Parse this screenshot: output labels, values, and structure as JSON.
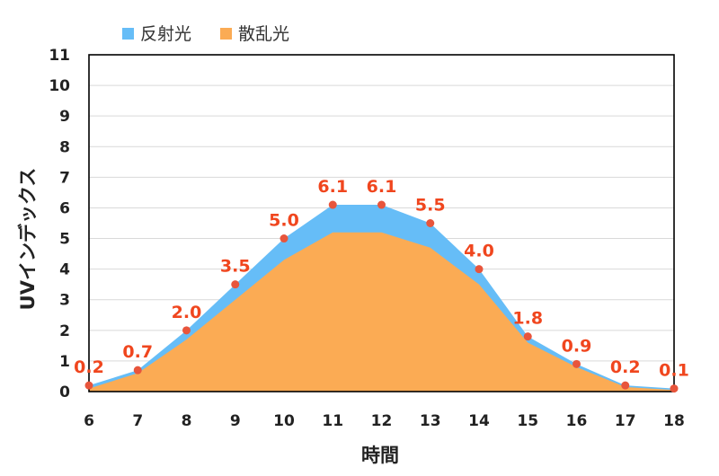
{
  "chart_data": {
    "type": "area",
    "title": "",
    "xlabel": "時間",
    "ylabel": "UVインデックス",
    "x": [
      6,
      7,
      8,
      9,
      10,
      11,
      12,
      13,
      14,
      15,
      16,
      17,
      18
    ],
    "x_tick_labels": [
      "6",
      "7",
      "8",
      "9",
      "10",
      "11",
      "12",
      "13",
      "14",
      "15",
      "16",
      "17",
      "18"
    ],
    "y_tick_labels": [
      "0",
      "1",
      "2",
      "3",
      "4",
      "5",
      "6",
      "7",
      "8",
      "9",
      "10",
      "11"
    ],
    "xlim": [
      6,
      18
    ],
    "ylim": [
      0,
      11
    ],
    "grid": true,
    "legend_position": "top-left",
    "series": [
      {
        "name": "反射光",
        "color": "#66BDF7",
        "values": [
          0.2,
          0.7,
          2.0,
          3.5,
          5.0,
          6.1,
          6.1,
          5.5,
          4.0,
          1.8,
          0.9,
          0.2,
          0.1
        ]
      },
      {
        "name": "散乱光",
        "color": "#FBAB54",
        "values": [
          0.1,
          0.6,
          1.7,
          3.0,
          4.3,
          5.2,
          5.2,
          4.7,
          3.5,
          1.6,
          0.8,
          0.15,
          0.05
        ]
      }
    ],
    "data_labels": [
      "0.2",
      "0.7",
      "2.0",
      "3.5",
      "5.0",
      "6.1",
      "6.1",
      "5.5",
      "4.0",
      "1.8",
      "0.9",
      "0.2",
      "0.1"
    ],
    "label_color": "#F0461E",
    "marker_color": "#E8553C"
  }
}
